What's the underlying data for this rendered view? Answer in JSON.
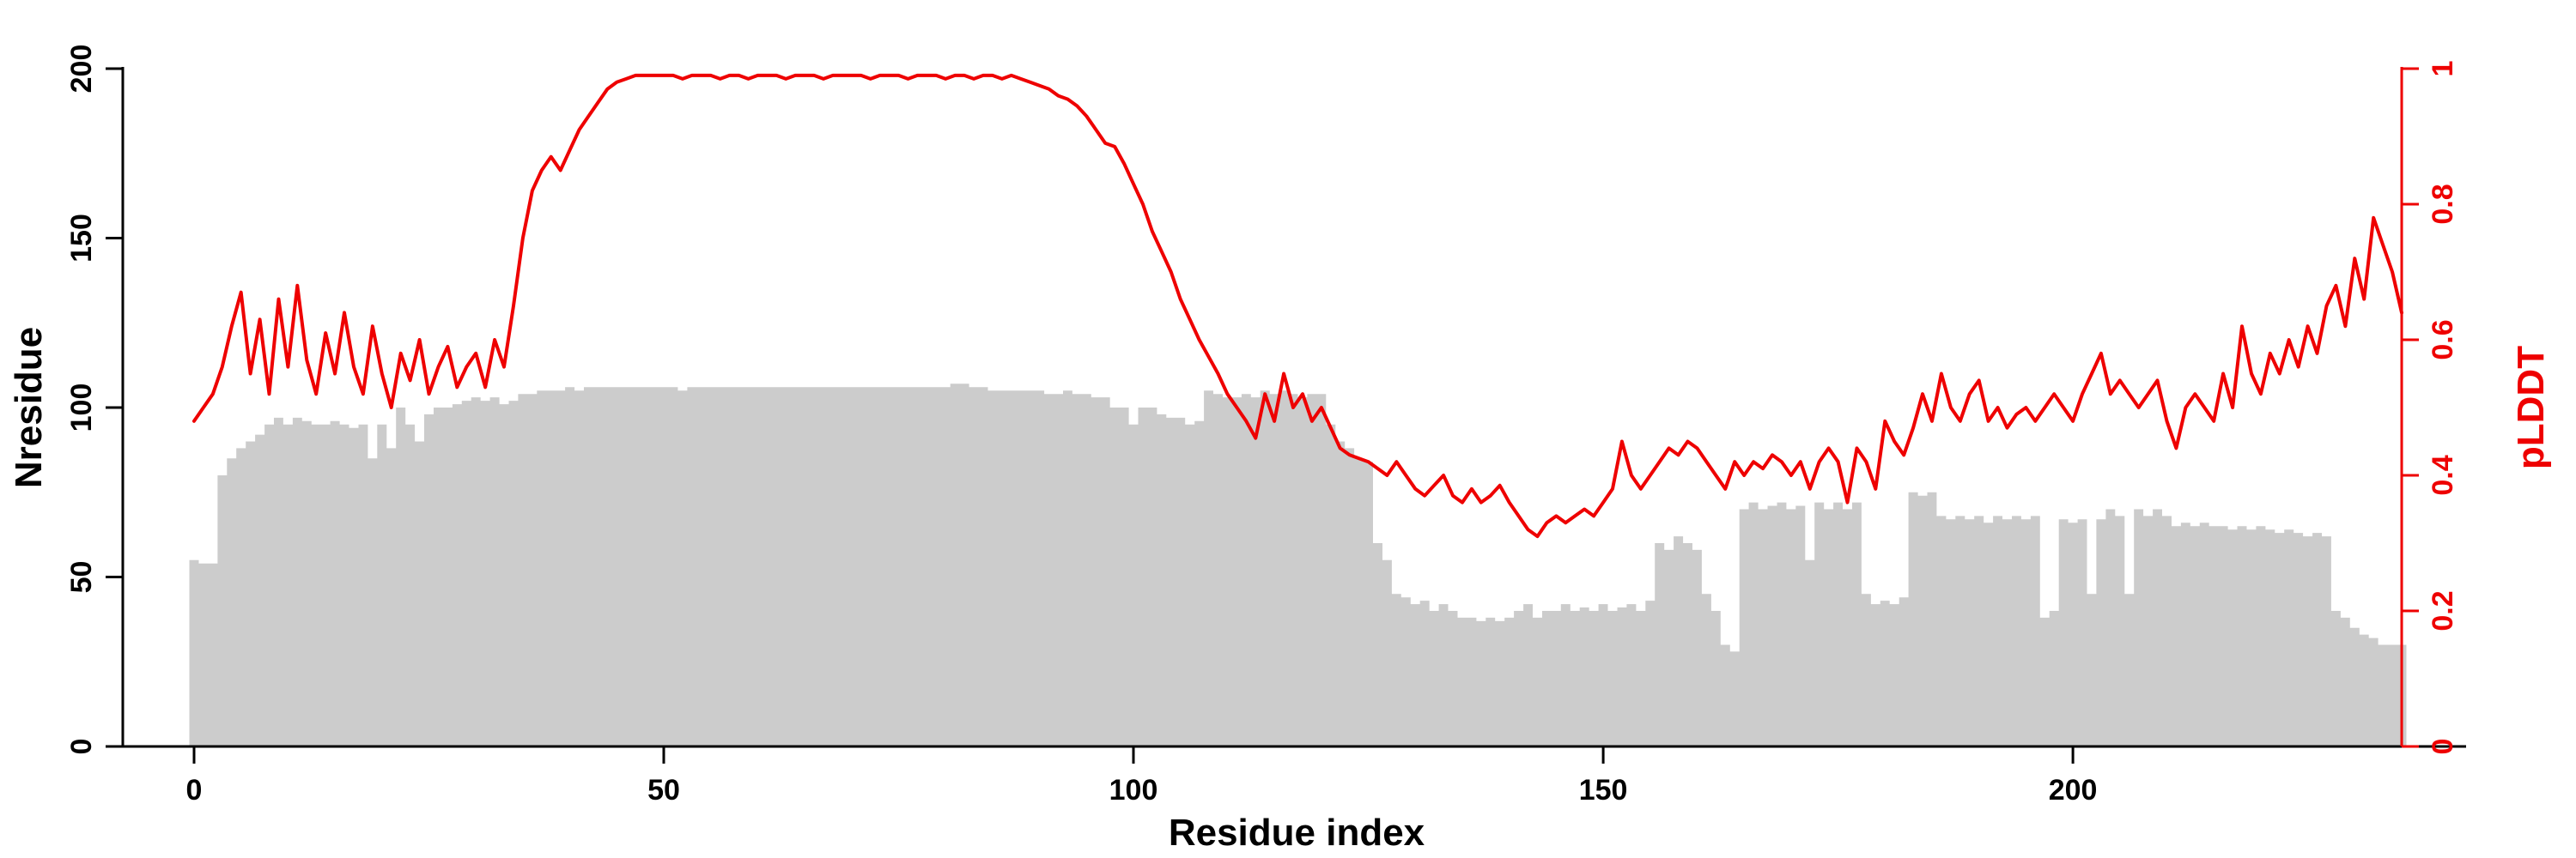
{
  "chart_data": {
    "type": "bar+line",
    "xlabel": "Residue index",
    "ylabel_left": "Nresidue",
    "ylabel_right": "pLDDT",
    "x_range": [
      0,
      235
    ],
    "y_left_range": [
      0,
      200
    ],
    "y_right_range": [
      0,
      1
    ],
    "x_ticks": [
      0,
      50,
      100,
      150,
      200
    ],
    "y_left_ticks": [
      0,
      50,
      100,
      150,
      200
    ],
    "y_right_ticks": [
      0,
      0.2,
      0.4,
      0.6,
      0.8,
      1
    ],
    "grid": false,
    "legend": "none",
    "colors": {
      "bar": "#cccccc",
      "line": "#ee0000",
      "left_axis": "#000000",
      "right_axis": "#ee0000",
      "background": "#ffffff"
    },
    "series": [
      {
        "name": "Nresidue",
        "type": "bar",
        "axis": "left",
        "values": [
          55,
          54,
          54,
          80,
          85,
          88,
          90,
          92,
          95,
          97,
          95,
          97,
          96,
          95,
          95,
          96,
          95,
          94,
          95,
          85,
          95,
          88,
          100,
          95,
          90,
          98,
          100,
          100,
          101,
          102,
          103,
          102,
          103,
          101,
          102,
          104,
          104,
          105,
          105,
          105,
          106,
          105,
          106,
          106,
          106,
          106,
          106,
          106,
          106,
          106,
          106,
          106,
          105,
          106,
          106,
          106,
          106,
          106,
          106,
          106,
          106,
          106,
          106,
          106,
          106,
          106,
          106,
          106,
          106,
          106,
          106,
          106,
          106,
          106,
          106,
          106,
          106,
          106,
          106,
          106,
          106,
          107,
          107,
          106,
          106,
          105,
          105,
          105,
          105,
          105,
          105,
          104,
          104,
          105,
          104,
          104,
          103,
          103,
          100,
          100,
          95,
          100,
          100,
          98,
          97,
          97,
          95,
          96,
          105,
          104,
          103,
          103,
          104,
          103,
          105,
          104,
          105,
          104,
          103,
          104,
          104,
          95,
          90,
          88,
          85,
          84,
          60,
          55,
          45,
          44,
          42,
          43,
          40,
          42,
          40,
          38,
          38,
          37,
          38,
          37,
          38,
          40,
          42,
          38,
          40,
          40,
          42,
          40,
          41,
          40,
          42,
          40,
          41,
          42,
          40,
          43,
          60,
          58,
          62,
          60,
          58,
          45,
          40,
          30,
          28,
          70,
          72,
          70,
          71,
          72,
          70,
          71,
          55,
          72,
          70,
          72,
          70,
          72,
          45,
          42,
          43,
          42,
          44,
          75,
          74,
          75,
          68,
          67,
          68,
          67,
          68,
          66,
          68,
          67,
          68,
          67,
          68,
          38,
          40,
          67,
          66,
          67,
          45,
          67,
          70,
          68,
          45,
          70,
          68,
          70,
          68,
          65,
          66,
          65,
          66,
          65,
          65,
          64,
          65,
          64,
          65,
          64,
          63,
          64,
          63,
          62,
          63,
          62,
          40,
          38,
          35,
          33,
          32,
          30,
          30,
          30
        ]
      },
      {
        "name": "pLDDT",
        "type": "line",
        "axis": "right",
        "values": [
          0.48,
          0.5,
          0.52,
          0.56,
          0.62,
          0.67,
          0.55,
          0.63,
          0.52,
          0.66,
          0.56,
          0.68,
          0.57,
          0.52,
          0.61,
          0.55,
          0.64,
          0.56,
          0.52,
          0.62,
          0.55,
          0.5,
          0.58,
          0.54,
          0.6,
          0.52,
          0.56,
          0.59,
          0.53,
          0.56,
          0.58,
          0.53,
          0.6,
          0.56,
          0.65,
          0.75,
          0.82,
          0.85,
          0.87,
          0.85,
          0.88,
          0.91,
          0.93,
          0.95,
          0.97,
          0.98,
          0.985,
          0.99,
          0.99,
          0.99,
          0.99,
          0.99,
          0.985,
          0.99,
          0.99,
          0.99,
          0.985,
          0.99,
          0.99,
          0.985,
          0.99,
          0.99,
          0.99,
          0.985,
          0.99,
          0.99,
          0.99,
          0.985,
          0.99,
          0.99,
          0.99,
          0.99,
          0.985,
          0.99,
          0.99,
          0.99,
          0.985,
          0.99,
          0.99,
          0.99,
          0.985,
          0.99,
          0.99,
          0.985,
          0.99,
          0.99,
          0.985,
          0.99,
          0.985,
          0.98,
          0.975,
          0.97,
          0.96,
          0.955,
          0.945,
          0.93,
          0.91,
          0.89,
          0.885,
          0.86,
          0.83,
          0.8,
          0.76,
          0.73,
          0.7,
          0.66,
          0.63,
          0.6,
          0.575,
          0.55,
          0.52,
          0.5,
          0.48,
          0.455,
          0.52,
          0.48,
          0.55,
          0.5,
          0.52,
          0.48,
          0.5,
          0.47,
          0.44,
          0.43,
          0.425,
          0.42,
          0.41,
          0.4,
          0.42,
          0.4,
          0.38,
          0.37,
          0.385,
          0.4,
          0.37,
          0.36,
          0.38,
          0.36,
          0.37,
          0.385,
          0.36,
          0.34,
          0.32,
          0.31,
          0.33,
          0.34,
          0.33,
          0.34,
          0.35,
          0.34,
          0.36,
          0.38,
          0.45,
          0.4,
          0.38,
          0.4,
          0.42,
          0.44,
          0.43,
          0.45,
          0.44,
          0.42,
          0.4,
          0.38,
          0.42,
          0.4,
          0.42,
          0.41,
          0.43,
          0.42,
          0.4,
          0.42,
          0.38,
          0.42,
          0.44,
          0.42,
          0.36,
          0.44,
          0.42,
          0.38,
          0.48,
          0.45,
          0.43,
          0.47,
          0.52,
          0.48,
          0.55,
          0.5,
          0.48,
          0.52,
          0.54,
          0.48,
          0.5,
          0.47,
          0.49,
          0.5,
          0.48,
          0.5,
          0.52,
          0.5,
          0.48,
          0.52,
          0.55,
          0.58,
          0.52,
          0.54,
          0.52,
          0.5,
          0.52,
          0.54,
          0.48,
          0.44,
          0.5,
          0.52,
          0.5,
          0.48,
          0.55,
          0.5,
          0.62,
          0.55,
          0.52,
          0.58,
          0.55,
          0.6,
          0.56,
          0.62,
          0.58,
          0.65,
          0.68,
          0.62,
          0.72,
          0.66,
          0.78,
          0.74,
          0.7,
          0.64
        ]
      }
    ]
  }
}
